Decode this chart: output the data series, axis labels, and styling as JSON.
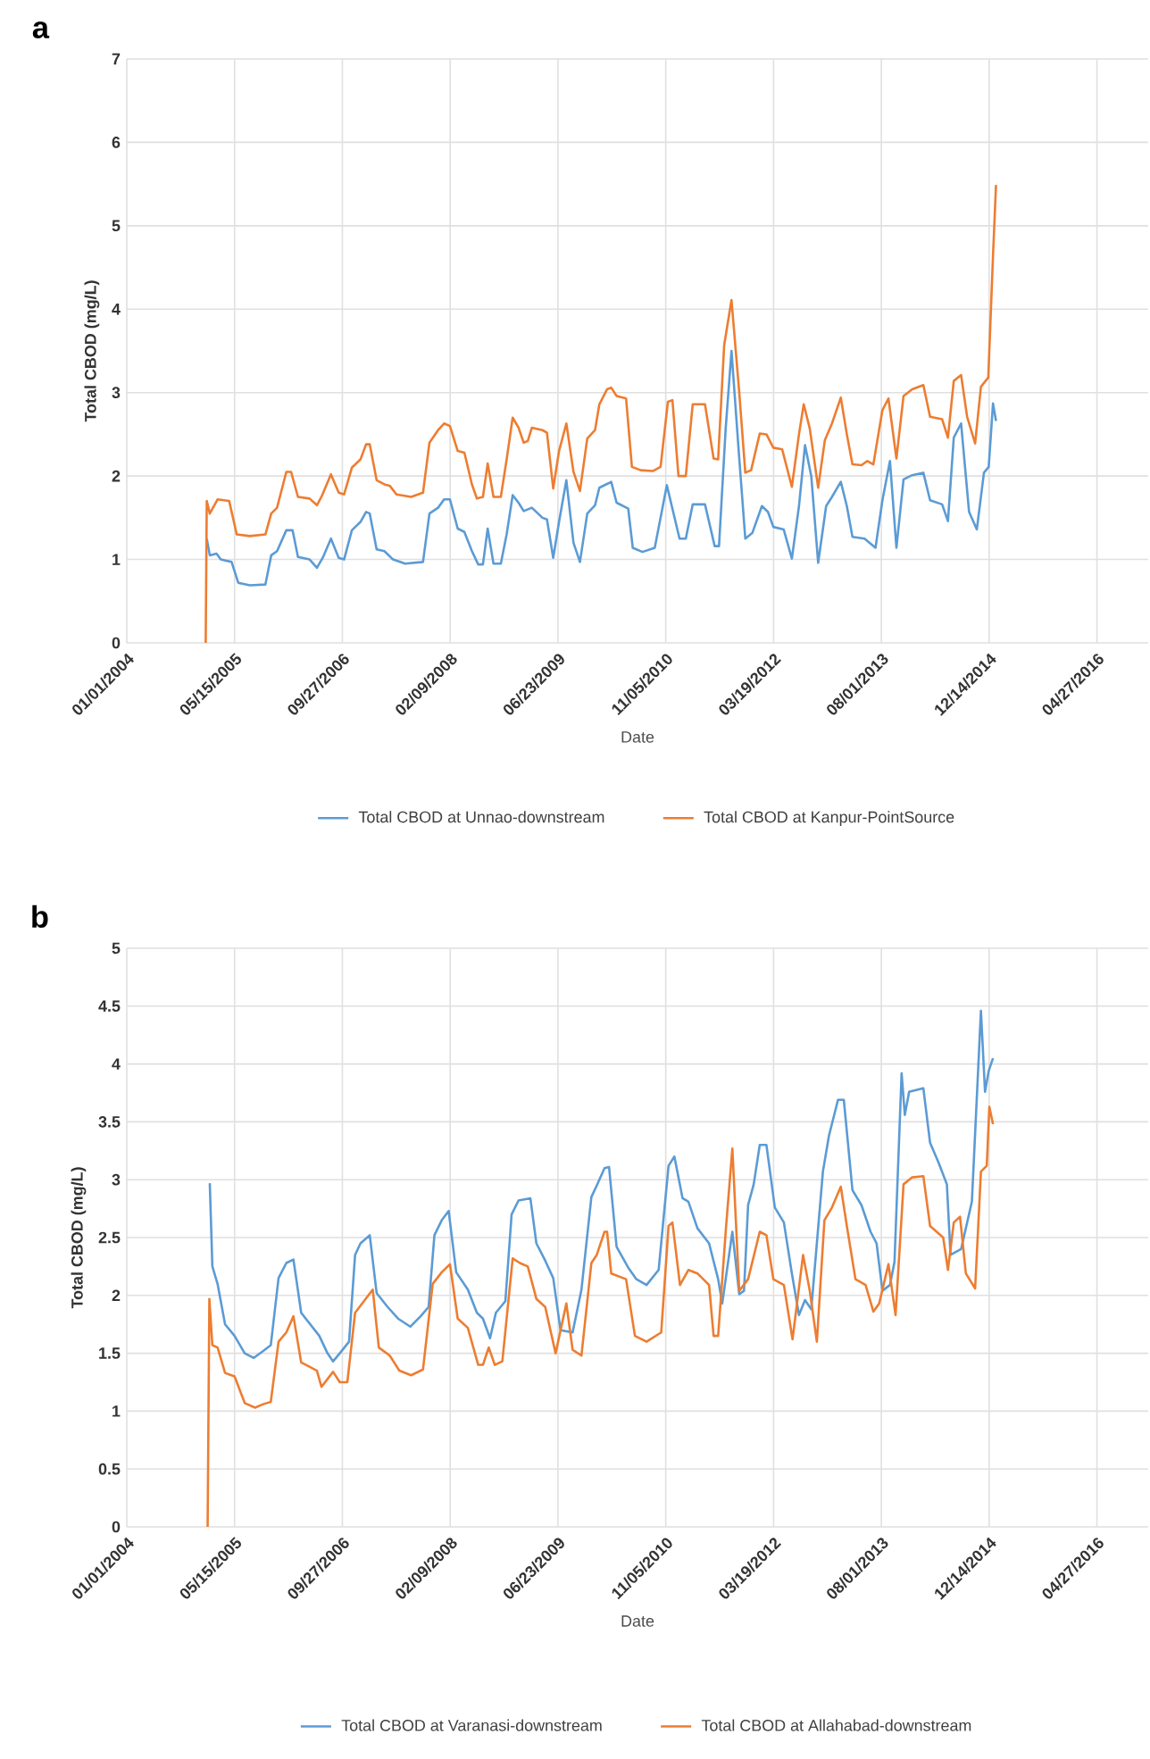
{
  "chart_data": [
    {
      "type": "line",
      "title": "a",
      "xlabel": "Date",
      "ylabel": "Total CBOD (mg/L)",
      "grid": true,
      "legend": "bottom",
      "xlim": [
        "2004-01-01",
        "2016-12-21"
      ],
      "xticks": [
        {
          "value": "2004-01-01",
          "label": "01/01/2004"
        },
        {
          "value": "2005-05-15",
          "label": "05/15/2005"
        },
        {
          "value": "2006-09-27",
          "label": "09/27/2006"
        },
        {
          "value": "2008-02-09",
          "label": "02/09/2008"
        },
        {
          "value": "2009-06-23",
          "label": "06/23/2009"
        },
        {
          "value": "2010-11-05",
          "label": "11/05/2010"
        },
        {
          "value": "2012-03-19",
          "label": "03/19/2012"
        },
        {
          "value": "2013-08-01",
          "label": "08/01/2013"
        },
        {
          "value": "2014-12-14",
          "label": "12/14/2014"
        },
        {
          "value": "2016-04-27",
          "label": "04/27/2016"
        }
      ],
      "ylim": [
        0,
        7
      ],
      "yticks": [
        0,
        1,
        2,
        3,
        4,
        5,
        6,
        7
      ],
      "series": [
        {
          "name": "Total CBOD at Unnao-downstream",
          "color": "#5b9bd5",
          "x": [
            "2005-01-06",
            "2005-01-20",
            "2005-02-20",
            "2005-03-12",
            "2005-05-01",
            "2005-06-01",
            "2005-07-25",
            "2005-10-05",
            "2005-11-01",
            "2005-11-28",
            "2006-01-10",
            "2006-02-08",
            "2006-03-05",
            "2006-04-28",
            "2006-06-01",
            "2006-06-28",
            "2006-08-05",
            "2006-09-10",
            "2006-10-05",
            "2006-11-10",
            "2006-12-20",
            "2007-01-15",
            "2007-02-01",
            "2007-03-05",
            "2007-04-10",
            "2007-05-20",
            "2007-07-15",
            "2007-10-06",
            "2007-11-05",
            "2007-12-15",
            "2008-01-12",
            "2008-02-08",
            "2008-03-15",
            "2008-04-15",
            "2008-05-20",
            "2008-06-18",
            "2008-07-10",
            "2008-08-01",
            "2008-08-28",
            "2008-10-01",
            "2008-10-28",
            "2008-11-25",
            "2008-12-22",
            "2009-01-15",
            "2009-02-22",
            "2009-04-12",
            "2009-05-03",
            "2009-06-01",
            "2009-06-28",
            "2009-08-01",
            "2009-09-03",
            "2009-10-03",
            "2009-11-06",
            "2009-12-12",
            "2010-01-01",
            "2010-02-10",
            "2010-02-25",
            "2010-03-22",
            "2010-05-15",
            "2010-06-05",
            "2010-07-20",
            "2010-09-15",
            "2010-11-10",
            "2011-01-08",
            "2011-02-06",
            "2011-03-10",
            "2011-05-06",
            "2011-06-20",
            "2011-07-10",
            "2011-08-10",
            "2011-09-06",
            "2011-10-12",
            "2011-11-09",
            "2011-12-12",
            "2012-01-25",
            "2012-02-22",
            "2012-03-18",
            "2012-05-05",
            "2012-06-12",
            "2012-07-15",
            "2012-08-12",
            "2012-09-10",
            "2012-10-12",
            "2012-11-18",
            "2012-12-15",
            "2013-01-25",
            "2013-02-22",
            "2013-03-20",
            "2013-05-15",
            "2013-07-05",
            "2013-08-06",
            "2013-09-10",
            "2013-10-10",
            "2013-11-12",
            "2013-12-22",
            "2014-02-12",
            "2014-03-15",
            "2014-05-10",
            "2014-06-06",
            "2014-07-03",
            "2014-08-06",
            "2014-09-12",
            "2014-10-18",
            "2014-11-20",
            "2014-12-12",
            "2015-01-01",
            "2015-01-15"
          ],
          "values": [
            1.25,
            1.05,
            1.07,
            1.0,
            0.97,
            0.72,
            0.69,
            0.7,
            1.05,
            1.1,
            1.35,
            1.35,
            1.03,
            1.0,
            0.9,
            1.02,
            1.25,
            1.02,
            1.0,
            1.35,
            1.45,
            1.57,
            1.55,
            1.12,
            1.1,
            1.0,
            0.95,
            0.97,
            1.55,
            1.62,
            1.72,
            1.72,
            1.37,
            1.33,
            1.1,
            0.94,
            0.94,
            1.37,
            0.95,
            0.95,
            1.3,
            1.77,
            1.68,
            1.58,
            1.62,
            1.5,
            1.48,
            1.02,
            1.45,
            1.95,
            1.2,
            0.97,
            1.55,
            1.65,
            1.86,
            1.91,
            1.93,
            1.68,
            1.61,
            1.14,
            1.09,
            1.14,
            1.89,
            1.25,
            1.25,
            1.66,
            1.66,
            1.16,
            1.16,
            2.57,
            3.5,
            2.21,
            1.25,
            1.32,
            1.64,
            1.57,
            1.39,
            1.36,
            1.01,
            1.64,
            2.37,
            2.0,
            0.96,
            1.64,
            1.75,
            1.93,
            1.64,
            1.27,
            1.25,
            1.14,
            1.71,
            2.18,
            1.14,
            1.96,
            2.01,
            2.04,
            1.71,
            1.66,
            1.46,
            2.46,
            2.63,
            1.57,
            1.36,
            2.04,
            2.11,
            2.87,
            2.66
          ]
        },
        {
          "name": "Total CBOD at Kanpur-PointSource",
          "color": "#ed7d31",
          "x": [
            "2005-01-01",
            "2005-01-06",
            "2005-01-20",
            "2005-02-25",
            "2005-04-20",
            "2005-05-25",
            "2005-07-25",
            "2005-10-05",
            "2005-11-01",
            "2005-11-28",
            "2006-01-10",
            "2006-02-01",
            "2006-03-05",
            "2006-04-28",
            "2006-06-01",
            "2006-06-22",
            "2006-08-05",
            "2006-09-10",
            "2006-10-05",
            "2006-11-10",
            "2006-12-20",
            "2007-01-15",
            "2007-02-01",
            "2007-03-05",
            "2007-04-10",
            "2007-05-06",
            "2007-06-05",
            "2007-08-12",
            "2007-10-06",
            "2007-11-05",
            "2007-12-15",
            "2008-01-12",
            "2008-02-08",
            "2008-03-15",
            "2008-04-15",
            "2008-05-20",
            "2008-06-12",
            "2008-07-10",
            "2008-08-01",
            "2008-08-28",
            "2008-10-01",
            "2008-10-28",
            "2008-11-25",
            "2008-12-22",
            "2009-01-15",
            "2009-02-03",
            "2009-02-22",
            "2009-04-12",
            "2009-05-03",
            "2009-06-01",
            "2009-06-28",
            "2009-08-01",
            "2009-09-03",
            "2009-10-03",
            "2009-11-06",
            "2009-12-12",
            "2010-01-01",
            "2010-02-06",
            "2010-02-25",
            "2010-03-22",
            "2010-05-05",
            "2010-06-01",
            "2010-07-12",
            "2010-09-06",
            "2010-10-12",
            "2010-11-15",
            "2010-12-06",
            "2011-01-03",
            "2011-02-06",
            "2011-03-10",
            "2011-05-06",
            "2011-06-15",
            "2011-07-06",
            "2011-08-03",
            "2011-09-06",
            "2011-10-12",
            "2011-11-09",
            "2011-12-06",
            "2012-01-15",
            "2012-02-15",
            "2012-03-18",
            "2012-04-28",
            "2012-06-12",
            "2012-07-15",
            "2012-08-06",
            "2012-09-03",
            "2012-10-12",
            "2012-11-12",
            "2012-12-15",
            "2013-01-25",
            "2013-02-22",
            "2013-03-20",
            "2013-05-01",
            "2013-05-28",
            "2013-06-25",
            "2013-08-06",
            "2013-09-03",
            "2013-10-10",
            "2013-11-12",
            "2013-12-22",
            "2014-02-12",
            "2014-03-15",
            "2014-05-10",
            "2014-06-06",
            "2014-07-03",
            "2014-08-06",
            "2014-09-03",
            "2014-10-10",
            "2014-11-06",
            "2014-12-10",
            "2015-01-01",
            "2015-01-15"
          ],
          "values": [
            0,
            1.7,
            1.55,
            1.72,
            1.7,
            1.3,
            1.28,
            1.3,
            1.55,
            1.62,
            2.05,
            2.05,
            1.75,
            1.73,
            1.65,
            1.75,
            2.02,
            1.8,
            1.78,
            2.1,
            2.2,
            2.38,
            2.38,
            1.95,
            1.9,
            1.88,
            1.78,
            1.75,
            1.8,
            2.4,
            2.55,
            2.63,
            2.6,
            2.3,
            2.28,
            1.9,
            1.73,
            1.75,
            2.15,
            1.75,
            1.75,
            2.2,
            2.7,
            2.58,
            2.4,
            2.42,
            2.58,
            2.55,
            2.52,
            1.85,
            2.3,
            2.63,
            2.05,
            1.82,
            2.45,
            2.55,
            2.86,
            3.04,
            3.06,
            2.96,
            2.93,
            2.11,
            2.07,
            2.06,
            2.11,
            2.89,
            2.91,
            2.0,
            2.0,
            2.86,
            2.86,
            2.21,
            2.2,
            3.57,
            4.11,
            3.0,
            2.04,
            2.07,
            2.51,
            2.5,
            2.34,
            2.32,
            1.87,
            2.5,
            2.86,
            2.57,
            1.86,
            2.43,
            2.63,
            2.94,
            2.5,
            2.14,
            2.13,
            2.18,
            2.14,
            2.79,
            2.93,
            2.21,
            2.96,
            3.04,
            3.09,
            2.71,
            2.68,
            2.46,
            3.14,
            3.21,
            2.71,
            2.39,
            3.07,
            3.18,
            4.64,
            5.49
          ]
        }
      ]
    },
    {
      "type": "line",
      "title": "b",
      "xlabel": "Date",
      "ylabel": "Total CBOD (mg/L)",
      "grid": true,
      "legend": "bottom",
      "xlim": [
        "2004-01-01",
        "2016-12-21"
      ],
      "xticks": [
        {
          "value": "2004-01-01",
          "label": "01/01/2004"
        },
        {
          "value": "2005-05-15",
          "label": "05/15/2005"
        },
        {
          "value": "2006-09-27",
          "label": "09/27/2006"
        },
        {
          "value": "2008-02-09",
          "label": "02/09/2008"
        },
        {
          "value": "2009-06-23",
          "label": "06/23/2009"
        },
        {
          "value": "2010-11-05",
          "label": "11/05/2010"
        },
        {
          "value": "2012-03-19",
          "label": "03/19/2012"
        },
        {
          "value": "2013-08-01",
          "label": "08/01/2013"
        },
        {
          "value": "2014-12-14",
          "label": "12/14/2014"
        },
        {
          "value": "2016-04-27",
          "label": "04/27/2016"
        }
      ],
      "ylim": [
        0,
        5
      ],
      "yticks": [
        0,
        0.5,
        1,
        1.5,
        2,
        2.5,
        3,
        3.5,
        4,
        4.5,
        5
      ],
      "series": [
        {
          "name": "Total CBOD at Varanasi-downstream",
          "color": "#5b9bd5",
          "x": [
            "2005-01-20",
            "2005-02-01",
            "2005-02-25",
            "2005-04-01",
            "2005-05-15",
            "2005-07-01",
            "2005-08-12",
            "2005-09-25",
            "2005-10-30",
            "2005-12-05",
            "2006-01-10",
            "2006-02-12",
            "2006-03-20",
            "2006-05-01",
            "2006-06-12",
            "2006-07-20",
            "2006-08-15",
            "2006-09-15",
            "2006-10-28",
            "2006-11-25",
            "2006-12-20",
            "2007-02-01",
            "2007-03-05",
            "2007-04-25",
            "2007-06-12",
            "2007-08-08",
            "2007-09-25",
            "2007-11-01",
            "2007-11-28",
            "2008-01-01",
            "2008-02-02",
            "2008-03-08",
            "2008-05-01",
            "2008-06-12",
            "2008-07-10",
            "2008-08-12",
            "2008-09-08",
            "2008-10-22",
            "2008-11-20",
            "2008-12-22",
            "2009-02-15",
            "2009-03-15",
            "2009-04-25",
            "2009-06-01",
            "2009-07-05",
            "2009-08-30",
            "2009-10-10",
            "2009-11-25",
            "2009-12-20",
            "2010-01-25",
            "2010-02-15",
            "2010-03-22",
            "2010-05-15",
            "2010-06-22",
            "2010-08-08",
            "2010-10-03",
            "2010-11-18",
            "2010-12-15",
            "2011-01-22",
            "2011-02-18",
            "2011-04-01",
            "2011-05-25",
            "2011-07-06",
            "2011-07-25",
            "2011-09-10",
            "2011-10-12",
            "2011-11-03",
            "2011-11-22",
            "2011-12-18",
            "2012-01-15",
            "2012-02-15",
            "2012-03-25",
            "2012-05-06",
            "2012-06-12",
            "2012-07-15",
            "2012-08-12",
            "2012-09-10",
            "2012-11-03",
            "2012-12-01",
            "2013-01-12",
            "2013-02-08",
            "2013-03-20",
            "2013-05-01",
            "2013-06-12",
            "2013-07-10",
            "2013-08-06",
            "2013-09-10",
            "2013-10-01",
            "2013-11-03",
            "2013-11-18",
            "2013-12-08",
            "2014-02-12",
            "2014-03-15",
            "2014-04-25",
            "2014-06-01",
            "2014-06-18",
            "2014-08-06",
            "2014-09-25",
            "2014-11-06",
            "2014-11-25",
            "2014-12-12",
            "2015-01-01"
          ],
          "values": [
            2.97,
            2.25,
            2.1,
            1.75,
            1.65,
            1.5,
            1.46,
            1.52,
            1.57,
            2.15,
            2.28,
            2.31,
            1.85,
            1.75,
            1.65,
            1.5,
            1.43,
            1.5,
            1.6,
            2.35,
            2.45,
            2.52,
            2.02,
            1.9,
            1.8,
            1.73,
            1.82,
            1.9,
            2.52,
            2.65,
            2.73,
            2.2,
            2.05,
            1.85,
            1.8,
            1.63,
            1.85,
            1.95,
            2.7,
            2.82,
            2.84,
            2.45,
            2.3,
            2.15,
            1.7,
            1.68,
            2.05,
            2.85,
            2.95,
            3.1,
            3.11,
            2.42,
            2.24,
            2.14,
            2.09,
            2.22,
            3.12,
            3.2,
            2.84,
            2.81,
            2.58,
            2.45,
            2.14,
            1.93,
            2.55,
            2.01,
            2.04,
            2.78,
            2.96,
            3.3,
            3.3,
            2.76,
            2.63,
            2.19,
            1.83,
            1.96,
            1.88,
            3.07,
            3.38,
            3.69,
            3.69,
            2.91,
            2.78,
            2.55,
            2.45,
            2.04,
            2.09,
            2.29,
            3.92,
            3.56,
            3.76,
            3.79,
            3.32,
            3.14,
            2.96,
            2.35,
            2.4,
            2.81,
            4.46,
            3.76,
            3.94,
            4.05
          ]
        },
        {
          "name": "Total CBOD at Allahabad-downstream",
          "color": "#ed7d31",
          "x": [
            "2005-01-10",
            "2005-01-18",
            "2005-02-01",
            "2005-02-25",
            "2005-04-01",
            "2005-05-15",
            "2005-07-01",
            "2005-08-18",
            "2005-09-25",
            "2005-10-30",
            "2005-12-05",
            "2006-01-10",
            "2006-02-12",
            "2006-03-20",
            "2006-05-01",
            "2006-06-01",
            "2006-06-22",
            "2006-08-15",
            "2006-09-15",
            "2006-10-20",
            "2006-11-25",
            "2007-01-05",
            "2007-02-15",
            "2007-03-15",
            "2007-05-05",
            "2007-06-18",
            "2007-08-12",
            "2007-10-06",
            "2007-11-20",
            "2008-01-01",
            "2008-02-08",
            "2008-03-15",
            "2008-05-01",
            "2008-06-18",
            "2008-07-10",
            "2008-08-06",
            "2008-09-03",
            "2008-10-08",
            "2008-11-25",
            "2008-12-28",
            "2009-02-03",
            "2009-03-15",
            "2009-04-25",
            "2009-06-12",
            "2009-08-01",
            "2009-08-30",
            "2009-10-10",
            "2009-11-25",
            "2009-12-20",
            "2010-01-25",
            "2010-02-06",
            "2010-02-25",
            "2010-05-05",
            "2010-06-15",
            "2010-08-08",
            "2010-10-15",
            "2010-11-18",
            "2010-12-06",
            "2011-01-10",
            "2011-02-18",
            "2011-04-01",
            "2011-05-25",
            "2011-06-15",
            "2011-07-06",
            "2011-08-12",
            "2011-09-10",
            "2011-10-12",
            "2011-11-22",
            "2012-01-15",
            "2012-02-15",
            "2012-03-18",
            "2012-05-06",
            "2012-06-15",
            "2012-08-03",
            "2012-09-03",
            "2012-10-06",
            "2012-11-10",
            "2012-12-15",
            "2013-01-25",
            "2013-02-22",
            "2013-04-03",
            "2013-05-20",
            "2013-06-25",
            "2013-07-22",
            "2013-09-03",
            "2013-10-06",
            "2013-11-12",
            "2013-12-22",
            "2014-02-12",
            "2014-03-15",
            "2014-05-15",
            "2014-06-06",
            "2014-07-03",
            "2014-08-01",
            "2014-08-28",
            "2014-10-10",
            "2014-11-06",
            "2014-12-03",
            "2014-12-15",
            "2015-01-01"
          ],
          "values": [
            0,
            1.97,
            1.57,
            1.55,
            1.33,
            1.3,
            1.07,
            1.03,
            1.06,
            1.08,
            1.6,
            1.68,
            1.82,
            1.42,
            1.38,
            1.35,
            1.21,
            1.34,
            1.25,
            1.25,
            1.85,
            1.95,
            2.05,
            1.55,
            1.48,
            1.35,
            1.31,
            1.36,
            2.1,
            2.2,
            2.27,
            1.8,
            1.72,
            1.4,
            1.4,
            1.55,
            1.4,
            1.43,
            2.32,
            2.28,
            2.25,
            1.97,
            1.9,
            1.5,
            1.93,
            1.53,
            1.48,
            2.28,
            2.35,
            2.55,
            2.55,
            2.19,
            2.14,
            1.65,
            1.6,
            1.68,
            2.6,
            2.63,
            2.09,
            2.22,
            2.19,
            2.09,
            1.65,
            1.65,
            2.6,
            3.27,
            2.04,
            2.14,
            2.55,
            2.52,
            2.14,
            2.09,
            1.62,
            2.35,
            2.04,
            1.6,
            2.65,
            2.76,
            2.94,
            2.6,
            2.14,
            2.09,
            1.86,
            1.93,
            2.27,
            1.83,
            2.96,
            3.02,
            3.03,
            2.6,
            2.5,
            2.22,
            2.63,
            2.68,
            2.19,
            2.06,
            3.07,
            3.12,
            3.63,
            3.48
          ]
        }
      ]
    }
  ]
}
